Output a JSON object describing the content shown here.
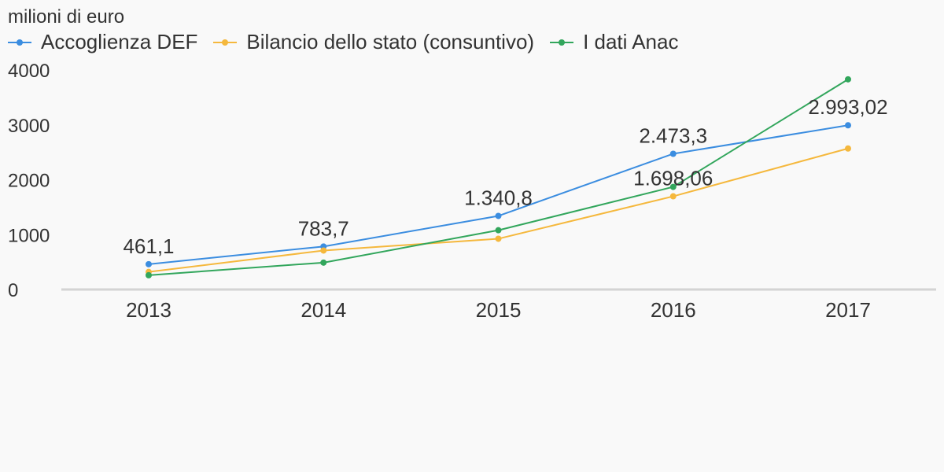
{
  "chart_data": {
    "type": "line",
    "unit_label": "milioni di euro",
    "categories": [
      "2013",
      "2014",
      "2015",
      "2016",
      "2017"
    ],
    "yticks": [
      "0",
      "1000",
      "2000",
      "3000",
      "4000"
    ],
    "ylim": [
      0,
      4000
    ],
    "grid": false,
    "legend_position": "top-left",
    "series": [
      {
        "name": "Accoglienza DEF",
        "color": "#3b8de0",
        "values": [
          461.1,
          783.7,
          1340.8,
          2473.3,
          2993.02
        ],
        "labels": [
          "461,1",
          "783,7",
          "1.340,8",
          "2.473,3",
          "2.993,02"
        ]
      },
      {
        "name": "Bilancio dello stato (consuntivo)",
        "color": "#f5b83d",
        "values": [
          320,
          710,
          925,
          1698.06,
          2570
        ],
        "labels": [
          "",
          "",
          "",
          "1.698,06",
          ""
        ]
      },
      {
        "name": "I dati Anac",
        "color": "#32a65c",
        "values": [
          260,
          490,
          1080,
          1870,
          3830
        ],
        "labels": [
          "",
          "",
          "",
          "",
          ""
        ]
      }
    ]
  }
}
